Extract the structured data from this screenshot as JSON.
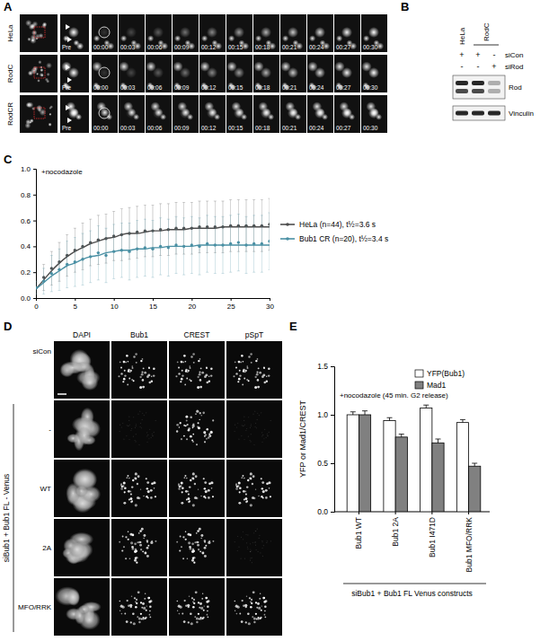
{
  "chart_data": [
    {
      "type": "line",
      "annotation": "+nocodazole",
      "x": [
        0,
        1,
        2,
        3,
        4,
        5,
        6,
        7,
        8,
        9,
        10,
        11,
        12,
        13,
        14,
        15,
        16,
        17,
        18,
        19,
        20,
        21,
        22,
        23,
        24,
        25,
        26,
        27,
        28,
        29,
        30
      ],
      "xlim": [
        0,
        30
      ],
      "xticks": [
        0,
        5,
        10,
        15,
        20,
        25,
        30
      ],
      "ylim": [
        0,
        1
      ],
      "yticks": [
        {
          "value": 0,
          "label": "0.0"
        },
        {
          "value": 0.2,
          "label": "0.2"
        },
        {
          "value": 0.4,
          "label": "0.4"
        },
        {
          "value": 0.6,
          "label": "0.6"
        },
        {
          "value": 0.8,
          "label": "0.8"
        },
        {
          "value": 1,
          "label": "1.0"
        }
      ],
      "legend": "right",
      "marker": "circle",
      "series": [
        {
          "name": "HeLa (n=44), t½=3.6 s",
          "color": "#4d4d4d",
          "values": [
            0.08,
            0.16,
            0.23,
            0.28,
            0.33,
            0.37,
            0.4,
            0.43,
            0.45,
            0.46,
            0.48,
            0.49,
            0.5,
            0.51,
            0.52,
            0.52,
            0.53,
            0.53,
            0.54,
            0.54,
            0.54,
            0.55,
            0.55,
            0.55,
            0.55,
            0.56,
            0.56,
            0.56,
            0.56,
            0.56,
            0.57
          ],
          "errors": [
            0.05,
            0.1,
            0.13,
            0.15,
            0.16,
            0.17,
            0.18,
            0.18,
            0.19,
            0.19,
            0.19,
            0.2,
            0.2,
            0.2,
            0.2,
            0.2,
            0.2,
            0.2,
            0.2,
            0.2,
            0.2,
            0.2,
            0.2,
            0.2,
            0.2,
            0.2,
            0.2,
            0.2,
            0.2,
            0.2,
            0.2
          ],
          "fit": [
            0.07,
            0.14,
            0.21,
            0.27,
            0.32,
            0.36,
            0.39,
            0.42,
            0.44,
            0.46,
            0.47,
            0.49,
            0.5,
            0.5,
            0.51,
            0.52,
            0.52,
            0.53,
            0.53,
            0.53,
            0.54,
            0.54,
            0.54,
            0.54,
            0.55,
            0.55,
            0.55,
            0.55,
            0.55,
            0.55,
            0.55
          ]
        },
        {
          "name": "Bub1 CR (n=20), t½=3.4 s",
          "color": "#4a90a4",
          "values": [
            0.08,
            0.13,
            0.19,
            0.22,
            0.26,
            0.28,
            0.3,
            0.32,
            0.35,
            0.33,
            0.36,
            0.37,
            0.36,
            0.38,
            0.39,
            0.38,
            0.4,
            0.39,
            0.41,
            0.4,
            0.41,
            0.4,
            0.42,
            0.41,
            0.41,
            0.42,
            0.43,
            0.41,
            0.42,
            0.42,
            0.44
          ],
          "errors": [
            0.05,
            0.1,
            0.14,
            0.16,
            0.18,
            0.19,
            0.2,
            0.2,
            0.21,
            0.21,
            0.21,
            0.21,
            0.22,
            0.22,
            0.22,
            0.22,
            0.22,
            0.22,
            0.22,
            0.22,
            0.22,
            0.22,
            0.22,
            0.22,
            0.22,
            0.22,
            0.22,
            0.22,
            0.22,
            0.22,
            0.22
          ],
          "fit": [
            0.07,
            0.12,
            0.17,
            0.21,
            0.25,
            0.27,
            0.3,
            0.32,
            0.33,
            0.35,
            0.36,
            0.37,
            0.37,
            0.38,
            0.38,
            0.39,
            0.39,
            0.4,
            0.4,
            0.4,
            0.4,
            0.41,
            0.41,
            0.41,
            0.41,
            0.41,
            0.41,
            0.41,
            0.41,
            0.41,
            0.41
          ]
        }
      ]
    },
    {
      "type": "bar",
      "annotation": "+nocodazole (45 min. G2 release)",
      "y_label": "YFP or Mad1/CREST",
      "categories": [
        "Bub1 WT",
        "Bub1 2A",
        "Bub1 I471D",
        "Bub1 MFO/RRK"
      ],
      "group_label": "siBub1 + Bub1 FL Venus constructs",
      "ylim": [
        0,
        1.5
      ],
      "yticks": [
        {
          "value": 0,
          "label": "0.0"
        },
        {
          "value": 0.5,
          "label": "0.5"
        },
        {
          "value": 1,
          "label": "1.0"
        },
        {
          "value": 1.5,
          "label": "1.5"
        }
      ],
      "legend": "top",
      "series": [
        {
          "name": "YFP(Bub1)",
          "color": "#ffffff",
          "values": [
            1.0,
            0.94,
            1.07,
            0.92
          ],
          "errors": [
            0.03,
            0.03,
            0.03,
            0.03
          ]
        },
        {
          "name": "Mad1",
          "color": "#808080",
          "values": [
            1.0,
            0.77,
            0.71,
            0.47
          ],
          "errors": [
            0.04,
            0.03,
            0.04,
            0.03
          ]
        }
      ]
    }
  ],
  "figure": {
    "panel_labels": [
      "A",
      "B",
      "C",
      "D",
      "E"
    ],
    "panel_a": {
      "rows": [
        "HeLa",
        "RodC",
        "RodCR"
      ],
      "pre": "Pre",
      "times": [
        "00:00",
        "00:03",
        "00:06",
        "00:09",
        "00:12",
        "00:15",
        "00:18",
        "00:21",
        "00:24",
        "00:27",
        "00:30"
      ]
    },
    "panel_b": {
      "cell_lines": [
        "HeLa",
        "RodC"
      ],
      "treatments": [
        {
          "name": "siCon",
          "values": [
            "+",
            "+",
            "-"
          ]
        },
        {
          "name": "siRod",
          "values": [
            "-",
            "-",
            "+"
          ]
        }
      ],
      "blots": [
        "Rod",
        "Vinculin"
      ]
    },
    "panel_d": {
      "columns": [
        "DAPI",
        "Bub1",
        "CREST",
        "pSpT"
      ],
      "rows": [
        "siCon",
        "-",
        "WT",
        "2A",
        "MFO/RRK"
      ],
      "group_label": "siBub1 + Bub1 FL - Venus"
    }
  }
}
